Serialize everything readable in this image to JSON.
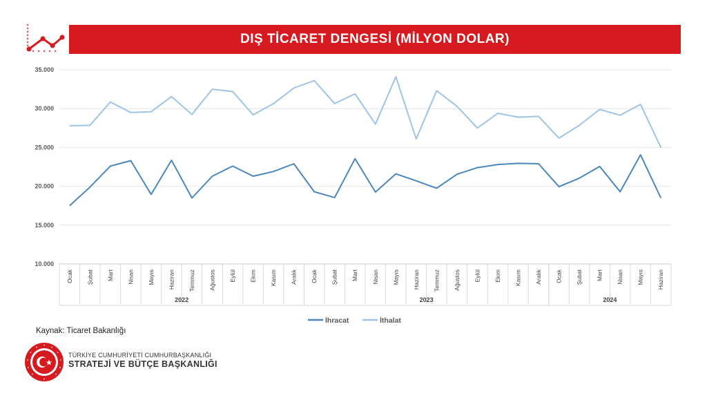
{
  "header": {
    "title": "DIŞ TİCARET DENGESİ (MİLYON DOLAR)"
  },
  "chart_data": {
    "type": "line",
    "ylim": [
      10000,
      35000
    ],
    "y_ticks": [
      "10.000",
      "15.000",
      "20.000",
      "25.000",
      "30.000",
      "35.000"
    ],
    "y_tick_values": [
      10000,
      15000,
      20000,
      25000,
      30000,
      35000
    ],
    "grid": true,
    "legend_position": "bottom",
    "categories": [
      "Ocak",
      "Şubat",
      "Mart",
      "Nisan",
      "Mayıs",
      "Haziran",
      "Temmuz",
      "Ağustos",
      "Eylül",
      "Ekim",
      "Kasım",
      "Aralık",
      "Ocak",
      "Şubat",
      "Mart",
      "Nisan",
      "Mayıs",
      "Haziran",
      "Temmuz",
      "Ağustos",
      "Eylül",
      "Ekim",
      "Kasım",
      "Aralık",
      "Ocak",
      "Şubat",
      "Mart",
      "Nisan",
      "Mayıs",
      "Haziran"
    ],
    "groups": [
      {
        "label": "2022",
        "count": 12
      },
      {
        "label": "2023",
        "count": 12
      },
      {
        "label": "2024",
        "count": 6
      }
    ],
    "series": [
      {
        "name": "İhracat",
        "color": "#4a86bd",
        "values": [
          17500,
          19900,
          22600,
          23300,
          18950,
          23350,
          18500,
          21300,
          22600,
          21300,
          21900,
          22900,
          19300,
          18550,
          23550,
          19250,
          21600,
          20700,
          19750,
          21550,
          22400,
          22800,
          22950,
          22900,
          19950,
          21050,
          22550,
          19300,
          24050,
          18500
        ]
      },
      {
        "name": "İthalat",
        "color": "#9dc3e6",
        "values": [
          27800,
          27850,
          30850,
          29500,
          29600,
          31550,
          29250,
          32500,
          32200,
          29200,
          30650,
          32650,
          33600,
          30650,
          31900,
          28000,
          34100,
          26100,
          32300,
          30300,
          27500,
          29400,
          28900,
          29000,
          26200,
          27850,
          29900,
          29150,
          30550,
          25000
        ]
      }
    ]
  },
  "footer": {
    "source": "Kaynak: Ticaret Bakanlığı",
    "org_line1": "TÜRKİYE CUMHURİYETİ CUMHURBAŞKANLIĞI",
    "org_line2": "STRATEJİ VE BÜTÇE BAŞKANLIĞI",
    "logo_ring_text": "T.C. CUMHURBAŞKANLIĞI STRATEJİ VE BÜTÇE BAŞKANLIĞI",
    "brand_color": "#d71920"
  }
}
